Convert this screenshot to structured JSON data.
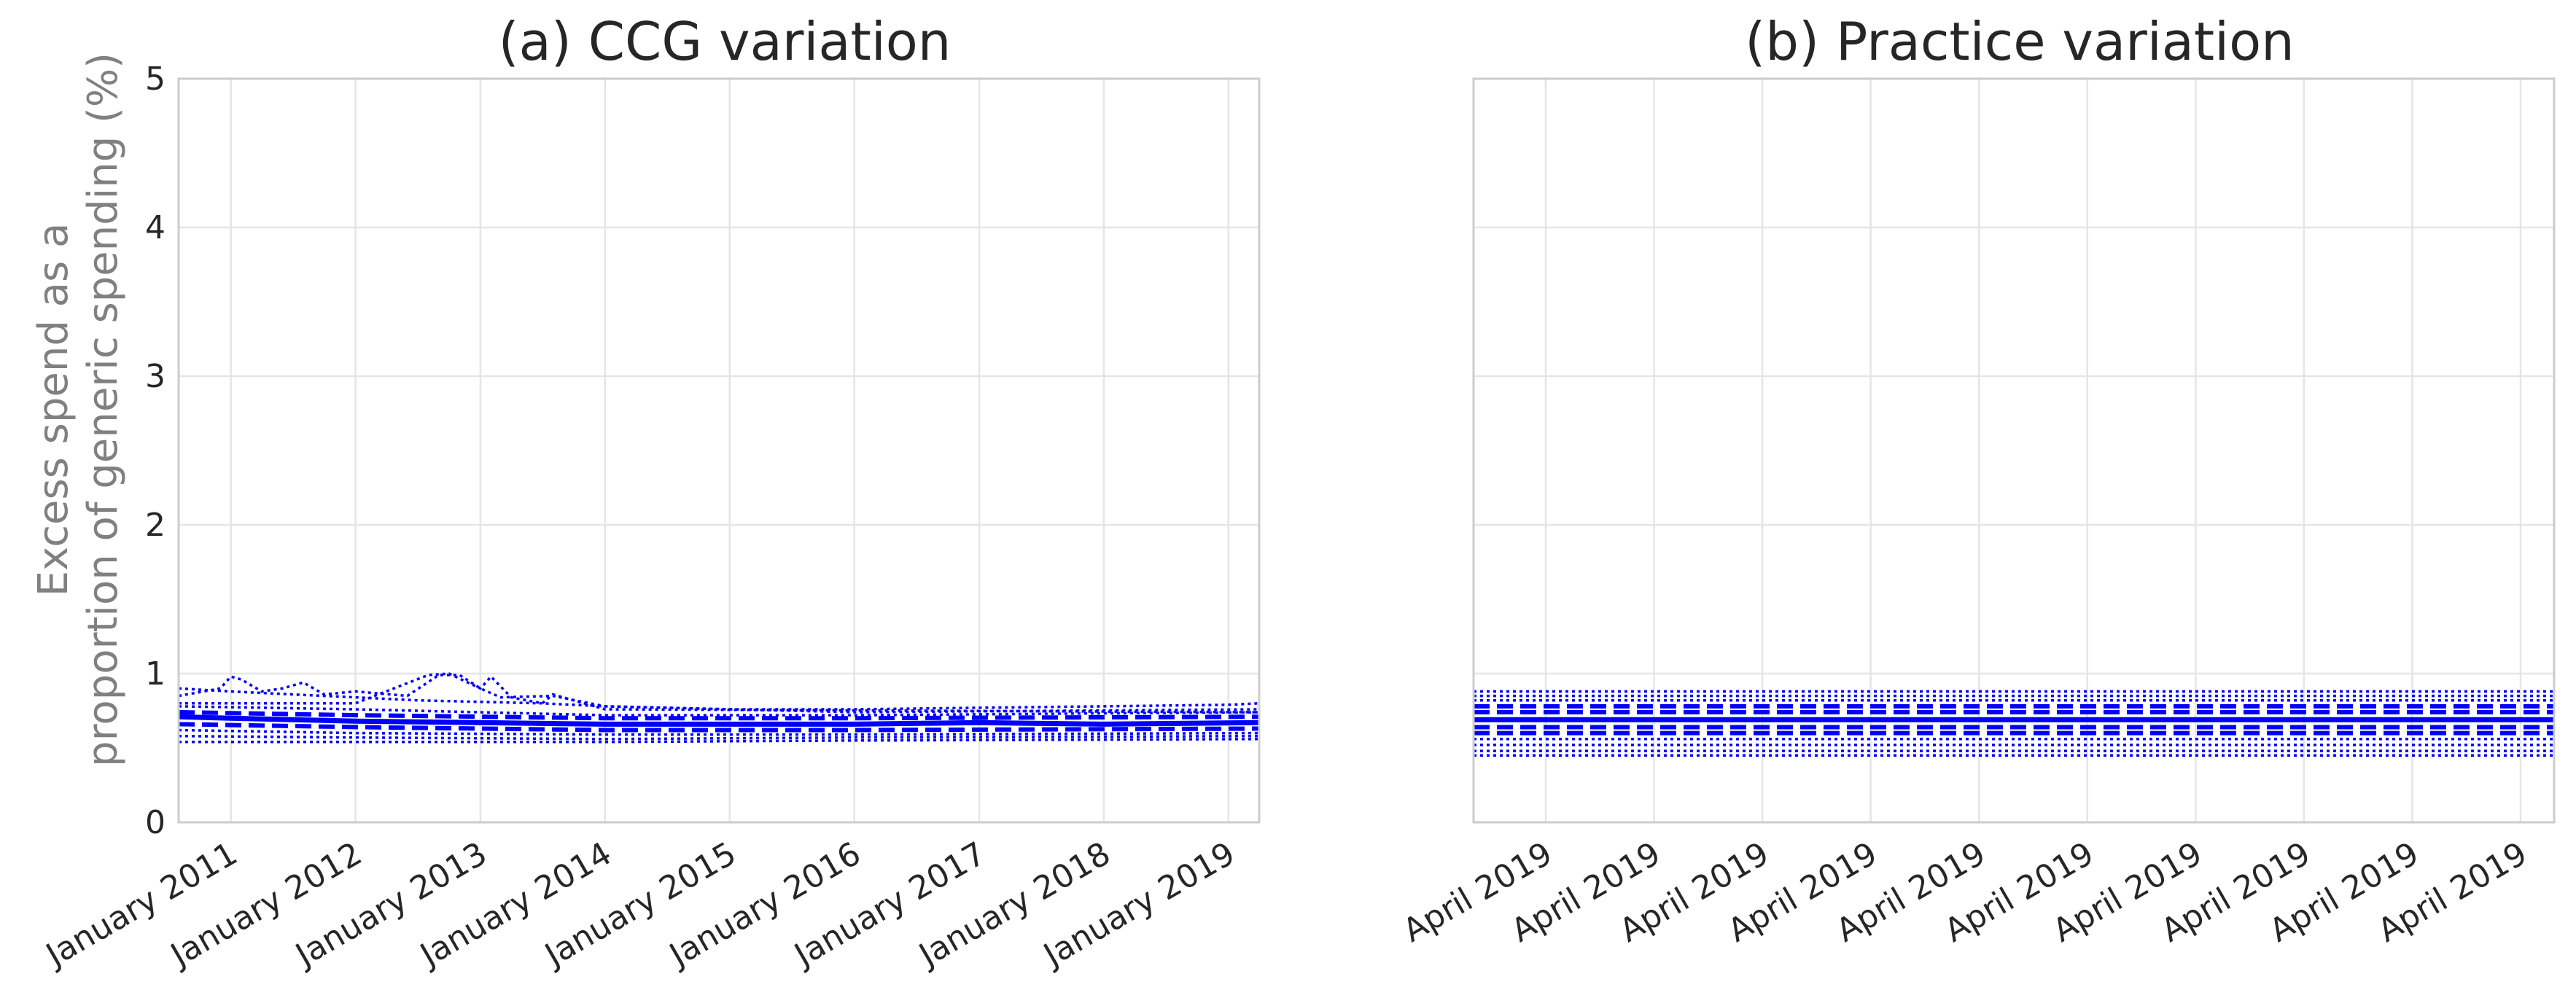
{
  "chart_data": [
    {
      "type": "line",
      "title": "(a) CCG variation",
      "ylabel": "Excess spend as a proportion of generic spending (%)",
      "ylabel_lines": [
        "Excess spend as a",
        "proportion of generic spending (%)"
      ],
      "xlabel": "",
      "x_axis": "date",
      "xlim": [
        "2010-08-01",
        "2019-04-01"
      ],
      "ylim": [
        0,
        5
      ],
      "yticks": [
        0,
        1,
        2,
        3,
        4,
        5
      ],
      "grid": true,
      "legend": "none",
      "xticks": [
        {
          "x": "2011-01-01",
          "label": "January 2011"
        },
        {
          "x": "2012-01-01",
          "label": "January 2012"
        },
        {
          "x": "2013-01-01",
          "label": "January 2013"
        },
        {
          "x": "2014-01-01",
          "label": "January 2014"
        },
        {
          "x": "2015-01-01",
          "label": "January 2015"
        },
        {
          "x": "2016-01-01",
          "label": "January 2016"
        },
        {
          "x": "2017-01-01",
          "label": "January 2017"
        },
        {
          "x": "2018-01-01",
          "label": "January 2018"
        },
        {
          "x": "2019-01-01",
          "label": "January 2019"
        }
      ],
      "series": [
        {
          "style": "dotted",
          "color": "#0000ff",
          "x": [
            "2010-08-01",
            "2011-01-01",
            "2011-07-01",
            "2012-01-01",
            "2012-07-01",
            "2013-01-01",
            "2013-07-01",
            "2014-01-01",
            "2015-01-01",
            "2016-01-01",
            "2017-01-01",
            "2018-01-01",
            "2019-01-01",
            "2019-04-01"
          ],
          "values": [
            0.9,
            0.88,
            0.86,
            0.84,
            0.82,
            0.81,
            0.8,
            0.78,
            0.76,
            0.76,
            0.77,
            0.78,
            0.79,
            0.8
          ]
        },
        {
          "style": "dotted",
          "color": "#0000ff",
          "x": [
            "2010-08-01",
            "2010-12-01",
            "2011-01-01",
            "2011-02-01",
            "2011-04-01",
            "2011-06-01",
            "2011-08-01",
            "2011-10-01",
            "2012-01-01",
            "2012-06-01",
            "2012-09-01",
            "2012-11-01",
            "2013-01-01",
            "2013-03-01",
            "2013-08-01",
            "2014-01-01",
            "2016-01-01",
            "2019-04-01"
          ],
          "values": [
            0.85,
            0.9,
            0.98,
            0.96,
            0.88,
            0.9,
            0.94,
            0.86,
            0.88,
            0.85,
            0.99,
            0.99,
            0.9,
            0.84,
            0.85,
            0.78,
            0.74,
            0.76
          ]
        },
        {
          "style": "dotted",
          "color": "#0000ff",
          "x": [
            "2010-08-01",
            "2012-01-01",
            "2012-08-01",
            "2012-10-01",
            "2013-01-01",
            "2013-02-01",
            "2013-04-01",
            "2013-07-01",
            "2013-08-01",
            "2014-01-01",
            "2019-04-01"
          ],
          "values": [
            0.8,
            0.8,
            0.99,
            1.0,
            0.9,
            0.98,
            0.84,
            0.8,
            0.86,
            0.76,
            0.74
          ]
        },
        {
          "style": "dotted",
          "color": "#0000ff",
          "x": [
            "2010-08-01",
            "2012-01-01",
            "2014-01-01",
            "2016-01-01",
            "2019-04-01"
          ],
          "values": [
            0.78,
            0.76,
            0.72,
            0.72,
            0.74
          ]
        },
        {
          "style": "dashed",
          "color": "#0000ff",
          "x": [
            "2010-08-01",
            "2012-01-01",
            "2014-01-01",
            "2016-01-01",
            "2019-04-01"
          ],
          "values": [
            0.74,
            0.72,
            0.7,
            0.7,
            0.71
          ]
        },
        {
          "style": "solid",
          "color": "#0000ff",
          "x": [
            "2010-08-01",
            "2011-01-01",
            "2012-01-01",
            "2013-01-01",
            "2014-01-01",
            "2015-01-01",
            "2016-01-01",
            "2017-01-01",
            "2018-01-01",
            "2019-04-01"
          ],
          "values": [
            0.71,
            0.7,
            0.68,
            0.67,
            0.66,
            0.66,
            0.66,
            0.67,
            0.66,
            0.67
          ]
        },
        {
          "style": "dashed",
          "color": "#0000ff",
          "x": [
            "2010-08-01",
            "2012-01-01",
            "2014-01-01",
            "2016-01-01",
            "2019-04-01"
          ],
          "values": [
            0.66,
            0.64,
            0.62,
            0.62,
            0.63
          ]
        },
        {
          "style": "dotted",
          "color": "#0000ff",
          "x": [
            "2010-08-01",
            "2012-01-01",
            "2014-01-01",
            "2016-01-01",
            "2019-04-01"
          ],
          "values": [
            0.62,
            0.6,
            0.59,
            0.59,
            0.6
          ]
        },
        {
          "style": "dotted",
          "color": "#0000ff",
          "x": [
            "2010-08-01",
            "2012-01-01",
            "2014-01-01",
            "2016-01-01",
            "2019-04-01"
          ],
          "values": [
            0.58,
            0.57,
            0.56,
            0.57,
            0.58
          ]
        },
        {
          "style": "dotted",
          "color": "#0000ff",
          "x": [
            "2010-08-01",
            "2012-01-01",
            "2014-01-01",
            "2016-01-01",
            "2019-04-01"
          ],
          "values": [
            0.54,
            0.54,
            0.54,
            0.55,
            0.56
          ]
        }
      ]
    },
    {
      "type": "line",
      "title": "(b) Practice variation",
      "xlabel": "",
      "ylabel": "",
      "ylim": [
        0,
        5
      ],
      "yticks": [
        0,
        1,
        2,
        3,
        4,
        5
      ],
      "grid": true,
      "legend": "none",
      "xticks": [
        "April 2019",
        "April 2019",
        "April 2019",
        "April 2019",
        "April 2019",
        "April 2019",
        "April 2019",
        "April 2019",
        "April 2019",
        "April 2019"
      ],
      "series": [
        {
          "style": "dotted",
          "color": "#0000ff",
          "values": [
            0.88
          ]
        },
        {
          "style": "dotted",
          "color": "#0000ff",
          "values": [
            0.85
          ]
        },
        {
          "style": "dotted",
          "color": "#0000ff",
          "values": [
            0.82
          ]
        },
        {
          "style": "dashed",
          "color": "#0000ff",
          "values": [
            0.78
          ]
        },
        {
          "style": "dashed",
          "color": "#0000ff",
          "values": [
            0.74
          ]
        },
        {
          "style": "solid",
          "color": "#0000ff",
          "values": [
            0.69
          ]
        },
        {
          "style": "dashed",
          "color": "#0000ff",
          "values": [
            0.64
          ]
        },
        {
          "style": "dashed",
          "color": "#0000ff",
          "values": [
            0.6
          ]
        },
        {
          "style": "dotted",
          "color": "#0000ff",
          "values": [
            0.56
          ]
        },
        {
          "style": "dotted",
          "color": "#0000ff",
          "values": [
            0.52
          ]
        },
        {
          "style": "dotted",
          "color": "#0000ff",
          "values": [
            0.48
          ]
        },
        {
          "style": "dotted",
          "color": "#0000ff",
          "values": [
            0.45
          ]
        }
      ]
    }
  ]
}
